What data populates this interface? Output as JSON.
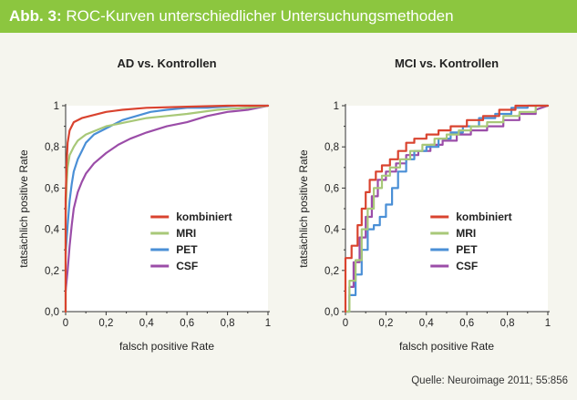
{
  "header": {
    "label": "Abb. 3:",
    "title": "ROC-Kurven unterschiedlicher Untersuchungsmethoden",
    "background": "#8cc63f"
  },
  "source": "Quelle: Neuroimage 2011; 55:856",
  "chart_data": [
    {
      "type": "line",
      "title": "AD vs. Kontrollen",
      "xlabel": "falsch positive Rate",
      "ylabel": "tatsächlich positive Rate",
      "xlim": [
        0,
        1
      ],
      "ylim": [
        0,
        1
      ],
      "xticks": [
        "0",
        "0,2",
        "0,4",
        "0,6",
        "0,8",
        "1"
      ],
      "yticks": [
        "0,0",
        "0,2",
        "0,4",
        "0,6",
        "0,8",
        "1"
      ],
      "grid": false,
      "legend": "bottom-right",
      "series": [
        {
          "name": "kombiniert",
          "color": "#d9432f",
          "x": [
            0,
            0,
            0.005,
            0.01,
            0.02,
            0.04,
            0.08,
            0.12,
            0.2,
            0.28,
            0.4,
            0.6,
            0.8,
            1
          ],
          "y": [
            0,
            0.55,
            0.72,
            0.82,
            0.88,
            0.92,
            0.94,
            0.95,
            0.97,
            0.98,
            0.99,
            0.995,
            1,
            1
          ]
        },
        {
          "name": "MRI",
          "color": "#a8c878",
          "x": [
            0,
            0,
            0.005,
            0.01,
            0.02,
            0.04,
            0.06,
            0.1,
            0.15,
            0.2,
            0.3,
            0.4,
            0.5,
            0.6,
            0.75,
            0.9,
            1
          ],
          "y": [
            0,
            0.45,
            0.62,
            0.7,
            0.76,
            0.8,
            0.83,
            0.86,
            0.88,
            0.9,
            0.92,
            0.94,
            0.95,
            0.96,
            0.98,
            0.99,
            1
          ]
        },
        {
          "name": "PET",
          "color": "#4a8fd6",
          "x": [
            0,
            0.01,
            0.02,
            0.03,
            0.04,
            0.06,
            0.08,
            0.1,
            0.14,
            0.18,
            0.22,
            0.28,
            0.35,
            0.42,
            0.5,
            0.6,
            0.7,
            0.85,
            1
          ],
          "y": [
            0.28,
            0.42,
            0.54,
            0.62,
            0.68,
            0.74,
            0.78,
            0.82,
            0.86,
            0.88,
            0.9,
            0.93,
            0.95,
            0.97,
            0.98,
            0.99,
            0.99,
            1,
            1
          ]
        },
        {
          "name": "CSF",
          "color": "#9b4da8",
          "x": [
            0,
            0.01,
            0.02,
            0.03,
            0.04,
            0.06,
            0.08,
            0.1,
            0.14,
            0.2,
            0.26,
            0.32,
            0.4,
            0.5,
            0.6,
            0.7,
            0.8,
            0.9,
            1
          ],
          "y": [
            0.1,
            0.2,
            0.32,
            0.42,
            0.5,
            0.58,
            0.63,
            0.67,
            0.72,
            0.77,
            0.81,
            0.84,
            0.87,
            0.9,
            0.92,
            0.95,
            0.97,
            0.98,
            1
          ]
        }
      ]
    },
    {
      "type": "line",
      "title": "MCI vs. Kontrollen",
      "xlabel": "falsch positive Rate",
      "ylabel": "tatsächlich positive Rate",
      "xlim": [
        0,
        1
      ],
      "ylim": [
        0,
        1
      ],
      "xticks": [
        "0",
        "0,2",
        "0,4",
        "0,6",
        "0,8",
        "1"
      ],
      "yticks": [
        "0,0",
        "0,2",
        "0,4",
        "0,6",
        "0,8",
        "1"
      ],
      "grid": false,
      "legend": "bottom-right",
      "series": [
        {
          "name": "kombiniert",
          "color": "#d9432f",
          "x": [
            0,
            0,
            0.03,
            0.03,
            0.06,
            0.06,
            0.08,
            0.08,
            0.1,
            0.1,
            0.12,
            0.12,
            0.15,
            0.15,
            0.18,
            0.18,
            0.22,
            0.22,
            0.26,
            0.26,
            0.3,
            0.3,
            0.34,
            0.34,
            0.4,
            0.4,
            0.46,
            0.46,
            0.52,
            0.52,
            0.6,
            0.6,
            0.68,
            0.68,
            0.76,
            0.76,
            0.84,
            0.84,
            1
          ],
          "y": [
            0,
            0.26,
            0.26,
            0.32,
            0.32,
            0.42,
            0.42,
            0.5,
            0.5,
            0.58,
            0.58,
            0.64,
            0.64,
            0.68,
            0.68,
            0.71,
            0.71,
            0.74,
            0.74,
            0.78,
            0.78,
            0.82,
            0.82,
            0.84,
            0.84,
            0.86,
            0.86,
            0.88,
            0.88,
            0.9,
            0.9,
            0.93,
            0.93,
            0.95,
            0.95,
            0.98,
            0.98,
            1,
            1
          ]
        },
        {
          "name": "MRI",
          "color": "#a8c878",
          "x": [
            0,
            0.02,
            0.02,
            0.05,
            0.05,
            0.08,
            0.08,
            0.11,
            0.11,
            0.14,
            0.14,
            0.18,
            0.18,
            0.22,
            0.22,
            0.27,
            0.27,
            0.32,
            0.32,
            0.38,
            0.38,
            0.44,
            0.44,
            0.5,
            0.5,
            0.56,
            0.56,
            0.62,
            0.62,
            0.7,
            0.7,
            0.78,
            0.78,
            0.86,
            0.86,
            0.94,
            0.94,
            1
          ],
          "y": [
            0,
            0,
            0.15,
            0.15,
            0.25,
            0.25,
            0.4,
            0.4,
            0.5,
            0.5,
            0.6,
            0.6,
            0.66,
            0.66,
            0.7,
            0.7,
            0.74,
            0.74,
            0.78,
            0.78,
            0.81,
            0.81,
            0.84,
            0.84,
            0.86,
            0.86,
            0.88,
            0.88,
            0.9,
            0.9,
            0.92,
            0.92,
            0.95,
            0.95,
            0.97,
            0.97,
            1,
            1
          ]
        },
        {
          "name": "PET",
          "color": "#4a8fd6",
          "x": [
            0,
            0.02,
            0.02,
            0.05,
            0.05,
            0.08,
            0.08,
            0.11,
            0.11,
            0.14,
            0.14,
            0.17,
            0.17,
            0.2,
            0.2,
            0.23,
            0.23,
            0.26,
            0.26,
            0.3,
            0.3,
            0.34,
            0.34,
            0.4,
            0.4,
            0.46,
            0.46,
            0.52,
            0.52,
            0.58,
            0.58,
            0.66,
            0.66,
            0.74,
            0.74,
            0.82,
            0.82,
            0.9,
            0.9,
            1
          ],
          "y": [
            0,
            0,
            0.08,
            0.08,
            0.18,
            0.18,
            0.3,
            0.3,
            0.4,
            0.4,
            0.42,
            0.42,
            0.46,
            0.46,
            0.52,
            0.52,
            0.6,
            0.6,
            0.68,
            0.68,
            0.74,
            0.74,
            0.78,
            0.78,
            0.8,
            0.8,
            0.84,
            0.84,
            0.87,
            0.87,
            0.9,
            0.9,
            0.94,
            0.94,
            0.96,
            0.96,
            0.99,
            0.99,
            1,
            1
          ]
        },
        {
          "name": "CSF",
          "color": "#9b4da8",
          "x": [
            0,
            0.02,
            0.02,
            0.04,
            0.04,
            0.07,
            0.07,
            0.1,
            0.1,
            0.13,
            0.13,
            0.16,
            0.16,
            0.2,
            0.2,
            0.25,
            0.25,
            0.3,
            0.3,
            0.36,
            0.36,
            0.42,
            0.42,
            0.48,
            0.48,
            0.55,
            0.55,
            0.62,
            0.62,
            0.7,
            0.7,
            0.78,
            0.78,
            0.86,
            0.86,
            0.94,
            0.94,
            1
          ],
          "y": [
            0,
            0,
            0.12,
            0.12,
            0.24,
            0.24,
            0.36,
            0.36,
            0.46,
            0.46,
            0.56,
            0.56,
            0.64,
            0.64,
            0.68,
            0.68,
            0.72,
            0.72,
            0.76,
            0.76,
            0.78,
            0.78,
            0.81,
            0.81,
            0.83,
            0.83,
            0.86,
            0.86,
            0.88,
            0.88,
            0.9,
            0.9,
            0.93,
            0.93,
            0.96,
            0.96,
            0.98,
            1
          ]
        }
      ]
    }
  ]
}
